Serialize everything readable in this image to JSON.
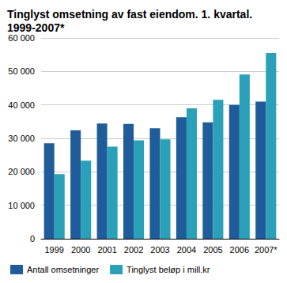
{
  "chart_data": {
    "type": "bar",
    "title": "Tinglyst omsetning av fast eiendom. 1. kvartal. 1999-2007*",
    "categories": [
      "1999",
      "2000",
      "2001",
      "2002",
      "2003",
      "2004",
      "2005",
      "2006",
      "2007*"
    ],
    "series": [
      {
        "name": "Antall omsetninger",
        "color": "#1f5c99",
        "values": [
          28500,
          32400,
          34400,
          34300,
          33000,
          36300,
          34800,
          40000,
          41000
        ]
      },
      {
        "name": "Tinglyst beløp i mill.kr",
        "color": "#2aa1b9",
        "values": [
          19300,
          23300,
          27500,
          29400,
          29700,
          39000,
          41500,
          49100,
          55500
        ]
      }
    ],
    "ylim": [
      0,
      60000
    ],
    "yticks": [
      0,
      {
        "value": 10000,
        "label": "10 000"
      },
      {
        "value": 20000,
        "label": "20 000"
      },
      {
        "value": 30000,
        "label": "30 000"
      },
      {
        "value": 40000,
        "label": "40 000"
      },
      {
        "value": 50000,
        "label": "50 000"
      },
      {
        "value": 60000,
        "label": "60 000"
      }
    ],
    "grid": true,
    "legend": "bottom"
  }
}
